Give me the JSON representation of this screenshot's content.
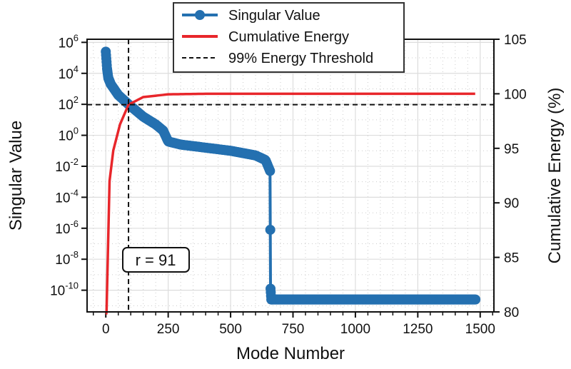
{
  "chart_data": {
    "type": "line",
    "title": "",
    "xlabel": "Mode Number",
    "ylabel": "Singular Value",
    "y2label": "Cumulative Energy (%)",
    "xlim": [
      -75,
      1555
    ],
    "ylim_log10": [
      -11.4,
      6.2
    ],
    "y2lim": [
      80,
      105
    ],
    "yscale": "log",
    "grid": true,
    "x_ticks": [
      0,
      250,
      500,
      750,
      1000,
      1250,
      1500
    ],
    "x_tick_labels": [
      "0",
      "250",
      "500",
      "750",
      "1000",
      "1250",
      "1500"
    ],
    "y_ticks_log10": [
      6,
      4,
      2,
      0,
      -2,
      -4,
      -6,
      -8,
      -10
    ],
    "y_tick_labels": [
      "10^6",
      "10^4",
      "10^2",
      "10^0",
      "10^-2",
      "10^-4",
      "10^-6",
      "10^-8",
      "10^-10"
    ],
    "y2_ticks": [
      80,
      85,
      90,
      95,
      100,
      105
    ],
    "y2_tick_labels": [
      "80",
      "85",
      "90",
      "95",
      "100",
      "105"
    ],
    "legend_position": "top-center",
    "series": [
      {
        "name": "Singular Value",
        "axis": "left",
        "color": "#2470b0",
        "marker": "circle",
        "n_modes": 1482,
        "keypoints_mode_log10": [
          [
            0,
            5.4
          ],
          [
            5,
            4.3
          ],
          [
            10,
            3.7
          ],
          [
            20,
            3.3
          ],
          [
            50,
            2.6
          ],
          [
            91,
            2.0
          ],
          [
            150,
            1.2
          ],
          [
            200,
            0.7
          ],
          [
            230,
            0.3
          ],
          [
            250,
            -0.4
          ],
          [
            300,
            -0.6
          ],
          [
            400,
            -0.8
          ],
          [
            500,
            -1.0
          ],
          [
            600,
            -1.3
          ],
          [
            640,
            -1.6
          ],
          [
            658,
            -2.3
          ],
          [
            660,
            -9.9
          ],
          [
            663,
            -10.6
          ],
          [
            1482,
            -10.6
          ]
        ]
      },
      {
        "name": "Cumulative Energy",
        "axis": "right",
        "color": "#e8262b",
        "keypoints_mode_percent": [
          [
            0,
            75
          ],
          [
            3,
            80
          ],
          [
            15,
            92
          ],
          [
            30,
            94.8
          ],
          [
            57,
            97.2
          ],
          [
            91,
            99
          ],
          [
            150,
            99.7
          ],
          [
            250,
            99.95
          ],
          [
            400,
            100
          ],
          [
            1482,
            100
          ]
        ]
      }
    ],
    "threshold": {
      "name": "99% Energy Threshold",
      "energy_percent": 99,
      "mode": 91,
      "color": "#111111"
    },
    "annotation": "r = 91"
  }
}
